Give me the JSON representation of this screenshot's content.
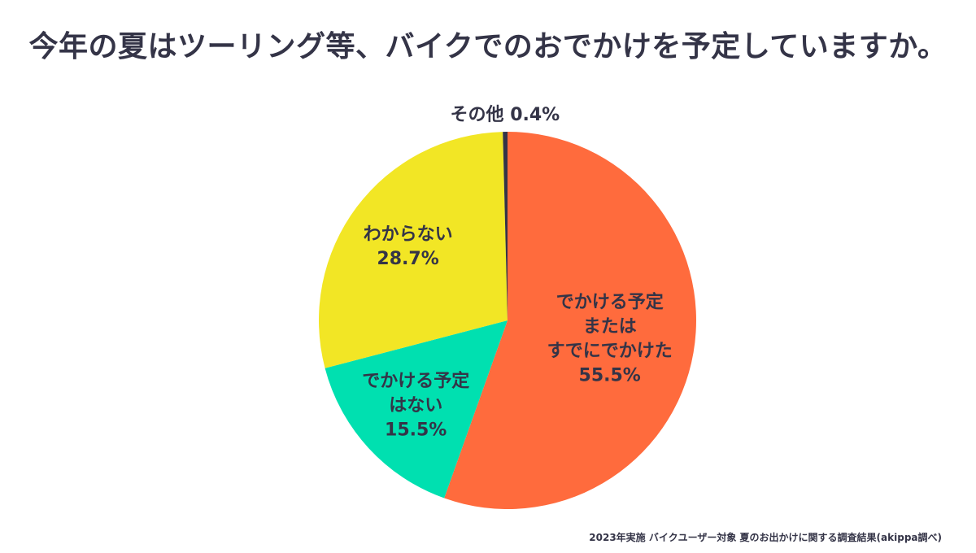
{
  "title": "今年の夏はツーリング等、バイクでのおでかけを予定していますか。",
  "source": "2023年実施 バイクユーザー対象 夏のお出かけに関する調査結果(akippa調べ)",
  "chart_data": {
    "type": "pie",
    "start_angle_deg": 0,
    "direction": "clockwise",
    "slices": [
      {
        "label_lines": [
          "でかける予定",
          "または",
          "すでにでかけた"
        ],
        "value": 55.5,
        "value_text": "55.5%",
        "color": "#FF6B3D"
      },
      {
        "label_lines": [
          "でかける予定",
          "はない"
        ],
        "value": 15.5,
        "value_text": "15.5%",
        "color": "#00E0B0"
      },
      {
        "label_lines": [
          "わからない"
        ],
        "value": 28.7,
        "value_text": "28.7%",
        "color": "#F2E625"
      },
      {
        "label_lines": [
          "その他"
        ],
        "value": 0.4,
        "value_text": "0.4%",
        "color": "#343447",
        "label_outside": true
      }
    ]
  }
}
